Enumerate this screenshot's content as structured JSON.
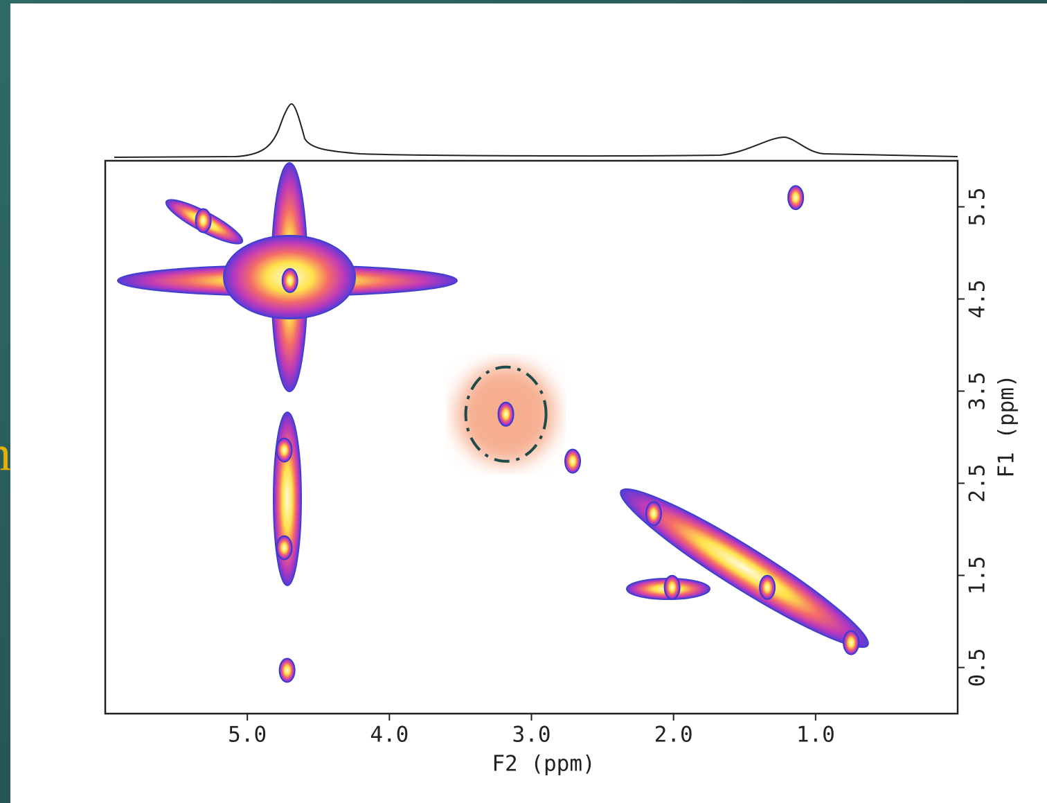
{
  "chart_data": {
    "type": "contour",
    "side_text": "n",
    "xlabel": "F2 (ppm)",
    "ylabel": "F1 (ppm)",
    "xlim": [
      6.0,
      0.0
    ],
    "ylim": [
      0.0,
      6.0
    ],
    "xticks": [
      {
        "value": 5,
        "label": "5.0"
      },
      {
        "value": 4,
        "label": "4.0"
      },
      {
        "value": 3,
        "label": "3.0"
      },
      {
        "value": 2,
        "label": "2.0"
      },
      {
        "value": 1,
        "label": "1.0"
      }
    ],
    "yticks": [
      5.5,
      4.5,
      3.5,
      2.5,
      1.5,
      0.5
    ],
    "x": [
      4.7,
      1.34,
      3.18,
      2.71,
      4.74,
      4.74,
      4.72,
      2.14,
      2.01,
      0.75,
      1.14,
      5.31
    ],
    "y": [
      4.7,
      1.37,
      3.25,
      2.74,
      2.86,
      1.8,
      0.47,
      2.17,
      1.37,
      0.77,
      5.6,
      5.35
    ],
    "highlight": {
      "x": 3.18,
      "y": 3.25
    },
    "color": "#3a3ad0"
  }
}
